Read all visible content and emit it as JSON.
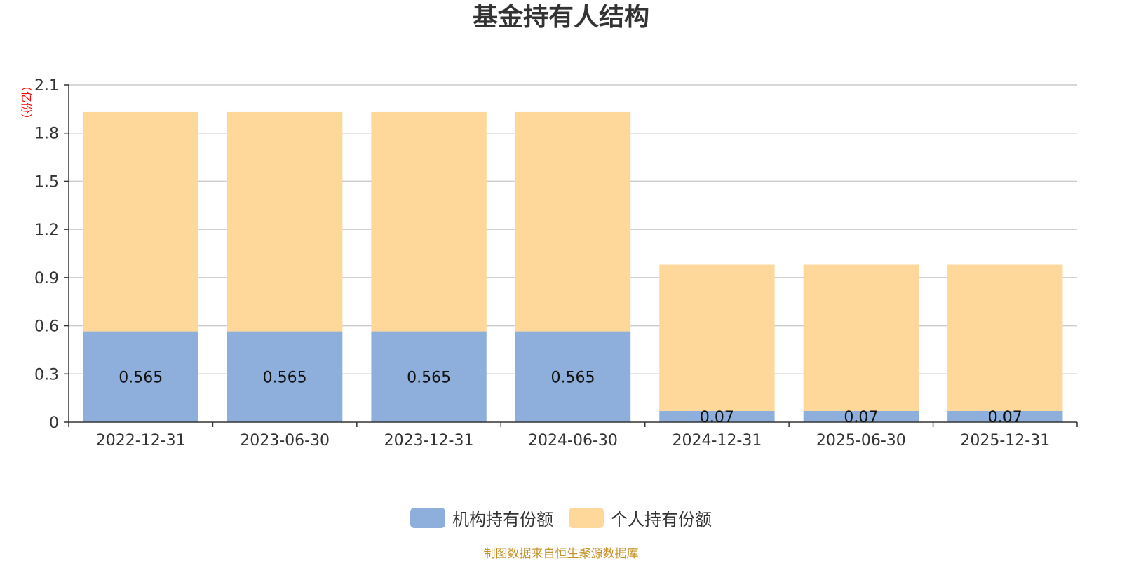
{
  "chart_data": {
    "type": "bar",
    "stacked": true,
    "title": "基金持有人结构",
    "unit_label": "（亿份）",
    "categories": [
      "2022-12-31",
      "2023-06-30",
      "2023-12-31",
      "2024-06-30",
      "2024-12-31",
      "2025-06-30",
      "2025-12-31"
    ],
    "series": [
      {
        "name": "机构持有份额",
        "color": "#8eaedb",
        "values": [
          0.565,
          0.565,
          0.565,
          0.565,
          0.07,
          0.07,
          0.07
        ],
        "data_labels": [
          "0.565",
          "0.565",
          "0.565",
          "0.565",
          "0.07",
          "0.07",
          "0.07"
        ]
      },
      {
        "name": "个人持有份额",
        "color": "#fdd89a",
        "values": [
          1.365,
          1.365,
          1.365,
          1.365,
          0.91,
          0.91,
          0.91
        ]
      }
    ],
    "ylim": [
      0,
      2.1
    ],
    "yticks": [
      "0",
      "0.3",
      "0.6",
      "0.9",
      "1.2",
      "1.5",
      "1.8",
      "2.1"
    ],
    "grid": true,
    "legend_position": "bottom"
  },
  "source_note": "制图数据来自恒生聚源数据库"
}
